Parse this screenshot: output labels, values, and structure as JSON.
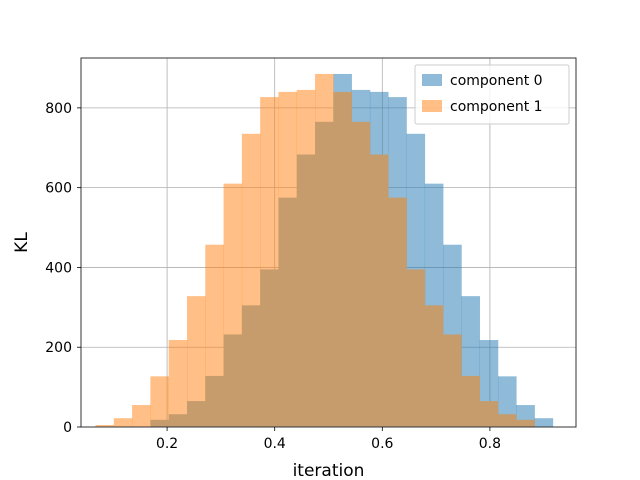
{
  "chart_data": {
    "type": "bar",
    "title": "",
    "xlabel": "iteration",
    "ylabel": "KL",
    "xlim": [
      0.04,
      0.96
    ],
    "ylim": [
      0,
      925
    ],
    "xticks": [
      0.2,
      0.4,
      0.6,
      0.8
    ],
    "yticks": [
      0,
      200,
      400,
      600,
      800
    ],
    "grid": true,
    "legend_position": "upper-right",
    "alpha": 0.5,
    "series": [
      {
        "name": "component 0",
        "color": "#1f77b4",
        "bin_edges": [
          0.067,
          0.101,
          0.135,
          0.169,
          0.203,
          0.237,
          0.271,
          0.305,
          0.339,
          0.373,
          0.407,
          0.441,
          0.475,
          0.509,
          0.543,
          0.577,
          0.611,
          0.645,
          0.679,
          0.713,
          0.747,
          0.781,
          0.815,
          0.849,
          0.883,
          0.917
        ],
        "counts": [
          0,
          0,
          0,
          0,
          0,
          0,
          0,
          0,
          0,
          0,
          0,
          0,
          0,
          885,
          845,
          840,
          827,
          735,
          610,
          457,
          328,
          218,
          127,
          55,
          22
        ]
      },
      {
        "name": "component 1",
        "color": "#ff7f0e",
        "bin_edges": [
          0.067,
          0.101,
          0.135,
          0.169,
          0.203,
          0.237,
          0.271,
          0.305,
          0.339,
          0.373,
          0.407,
          0.441,
          0.475,
          0.509,
          0.543,
          0.577,
          0.611,
          0.645,
          0.679,
          0.713,
          0.747,
          0.781,
          0.815,
          0.849,
          0.883,
          0.917
        ],
        "counts": [
          5,
          22,
          55,
          127,
          218,
          328,
          457,
          610,
          735,
          827,
          840,
          845,
          885,
          0,
          0,
          0,
          0,
          0,
          0,
          0,
          0,
          0,
          0,
          0,
          0
        ]
      },
      {
        "name": "overlap",
        "color": "#c69c6d",
        "bin_edges": [
          0.067,
          0.101,
          0.135,
          0.169,
          0.203,
          0.237,
          0.271,
          0.305,
          0.339,
          0.373,
          0.407,
          0.441,
          0.475,
          0.509,
          0.543,
          0.577,
          0.611,
          0.645,
          0.679,
          0.713,
          0.747,
          0.781,
          0.815,
          0.849,
          0.883,
          0.917
        ],
        "counts": [
          0,
          0,
          0,
          18,
          32,
          65,
          128,
          232,
          305,
          395,
          575,
          683,
          765,
          840,
          765,
          683,
          575,
          395,
          305,
          232,
          128,
          65,
          32,
          18,
          0
        ]
      }
    ],
    "legend": [
      {
        "label": "component 0",
        "color": "#1f77b4"
      },
      {
        "label": "component 1",
        "color": "#ff7f0e"
      }
    ]
  }
}
